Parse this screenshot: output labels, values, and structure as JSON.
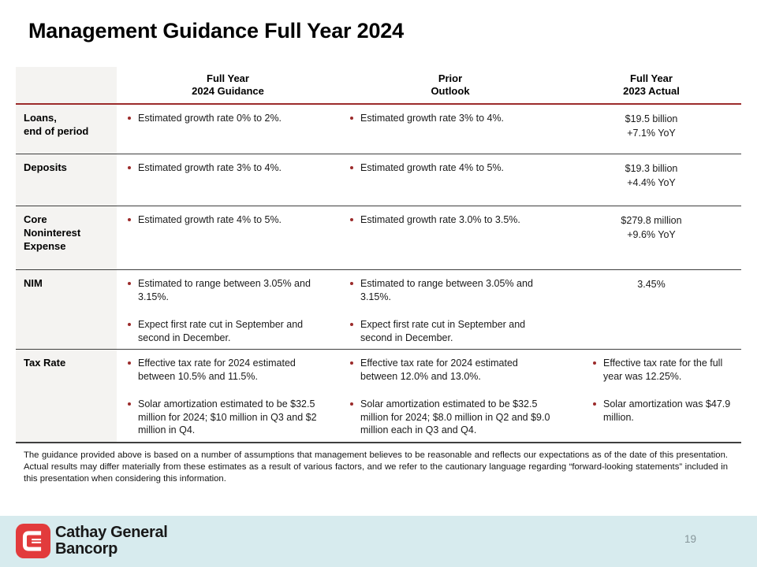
{
  "slide": {
    "title": "Management Guidance Full Year 2024",
    "footnote": "The guidance provided above is based on a number of assumptions that management believes to be reasonable and reflects our expectations as of the date of this presentation. Actual results may differ materially from these estimates as a result of various factors, and we refer to the cautionary language regarding “forward-looking statements” included in this presentation when considering this information.",
    "page_number": "19"
  },
  "table": {
    "columns": [
      {
        "line1": "Full Year",
        "line2": "2024 Guidance"
      },
      {
        "line1": "Prior",
        "line2": "Outlook"
      },
      {
        "line1": "Full Year",
        "line2": "2023 Actual"
      }
    ],
    "rows": [
      {
        "label": "Loans,\nend of period",
        "cells": [
          {
            "bullets": [
              "Estimated growth rate 0% to 2%."
            ]
          },
          {
            "bullets": [
              "Estimated growth rate 3% to 4%."
            ]
          },
          {
            "center": [
              "$19.5 billion",
              "+7.1% YoY"
            ]
          }
        ]
      },
      {
        "label": "Deposits",
        "cells": [
          {
            "bullets": [
              "Estimated growth rate 3% to 4%."
            ]
          },
          {
            "bullets": [
              "Estimated growth rate 4% to 5%."
            ]
          },
          {
            "center": [
              "$19.3 billion",
              "+4.4% YoY"
            ]
          }
        ]
      },
      {
        "label": "Core\nNoninterest\nExpense",
        "cells": [
          {
            "bullets": [
              "Estimated growth rate 4% to 5%."
            ]
          },
          {
            "bullets": [
              "Estimated growth rate 3.0% to 3.5%."
            ]
          },
          {
            "center": [
              "$279.8 million",
              "+9.6% YoY"
            ]
          }
        ]
      },
      {
        "label": "NIM",
        "cells": [
          {
            "bullets": [
              "Estimated to range between 3.05% and 3.15%.",
              "Expect first rate cut in September and second in December."
            ]
          },
          {
            "bullets": [
              "Estimated to range between 3.05% and 3.15%.",
              "Expect first rate cut in September and second in December."
            ]
          },
          {
            "center": [
              "3.45%"
            ]
          }
        ]
      },
      {
        "label": "Tax Rate",
        "cells": [
          {
            "bullets": [
              "Effective tax rate for 2024 estimated between 10.5% and 11.5%.",
              "Solar amortization estimated to be $32.5 million for 2024; $10 million in Q3 and $2 million in Q4."
            ]
          },
          {
            "bullets": [
              "Effective tax rate for 2024 estimated between 12.0% and 13.0%.",
              "Solar amortization estimated to be $32.5 million for 2024; $8.0 million in Q2 and $9.0 million each in Q3 and Q4."
            ]
          },
          {
            "bullets": [
              "Effective tax rate for the full year was 12.25%.",
              "Solar amortization was $47.9 million."
            ]
          }
        ]
      }
    ]
  },
  "footer": {
    "company_line1": "Cathay General",
    "company_line2": "Bancorp",
    "logo_icon": "cathay-c-logo-icon"
  },
  "colors": {
    "accent_red": "#9c2b2b",
    "rule_gray": "#3f3f3f",
    "label_bg": "#f4f3f1",
    "footer_blue": "#d7ebee",
    "logo_red": "#e23b3c"
  }
}
